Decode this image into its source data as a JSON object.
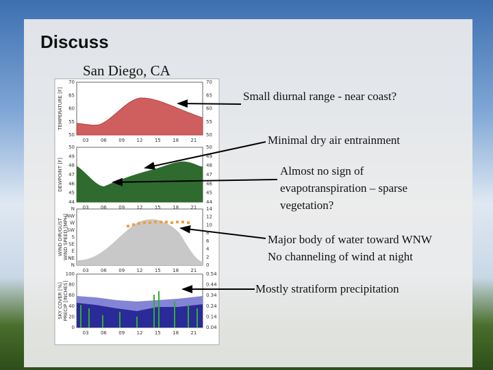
{
  "header": {
    "title": "Discuss",
    "subtitle": "San Diego, CA"
  },
  "meteogram": {
    "panels": [
      {
        "labels": [
          "TEMPERATURE [F]"
        ],
        "left_ticks": [
          "70",
          "65",
          "60",
          "55",
          "50"
        ],
        "right_ticks": [
          "70",
          "65",
          "60",
          "55",
          "50"
        ],
        "x_ticks": [
          "03",
          "06",
          "09",
          "12",
          "15",
          "18",
          "21"
        ]
      },
      {
        "labels": [
          "DEWPOINT [F]"
        ],
        "left_ticks": [
          "50",
          "49",
          "48",
          "47",
          "46",
          "45",
          "44"
        ],
        "right_ticks": [
          "50",
          "49",
          "48",
          "47",
          "46",
          "45",
          "44"
        ],
        "x_ticks": [
          "03",
          "06",
          "09",
          "12",
          "15",
          "18",
          "21"
        ]
      },
      {
        "labels": [
          "WIND DIR/GUST",
          "WIND SPEED [MPH]"
        ],
        "left_ticks": [
          "N",
          "NW",
          "W",
          "SW",
          "S",
          "SE",
          "E",
          "NE",
          "N"
        ],
        "right_ticks": [
          "14",
          "12",
          "10",
          "8",
          "6",
          "4",
          "2",
          "0"
        ],
        "x_ticks": [
          "03",
          "06",
          "09",
          "12",
          "15",
          "18",
          "21"
        ]
      },
      {
        "labels": [
          "SKY COVER [%]",
          "PRECIP [INCHES]"
        ],
        "left_ticks": [
          "100",
          "80",
          "60",
          "40",
          "20",
          "0"
        ],
        "right_ticks": [
          "0.54",
          "0.44",
          "0.34",
          "0.24",
          "0.14",
          "0.04"
        ],
        "x_ticks": [
          "03",
          "06",
          "09",
          "12",
          "15",
          "18",
          "21"
        ]
      }
    ]
  },
  "annotations": [
    "Small diurnal range -  near coast?",
    "Minimal dry air entrainment",
    "Almost no sign of evapotranspiration – sparse vegetation?",
    "Major body of water toward WNW",
    "No channeling of wind at night",
    "Mostly stratiform precipitation"
  ]
}
